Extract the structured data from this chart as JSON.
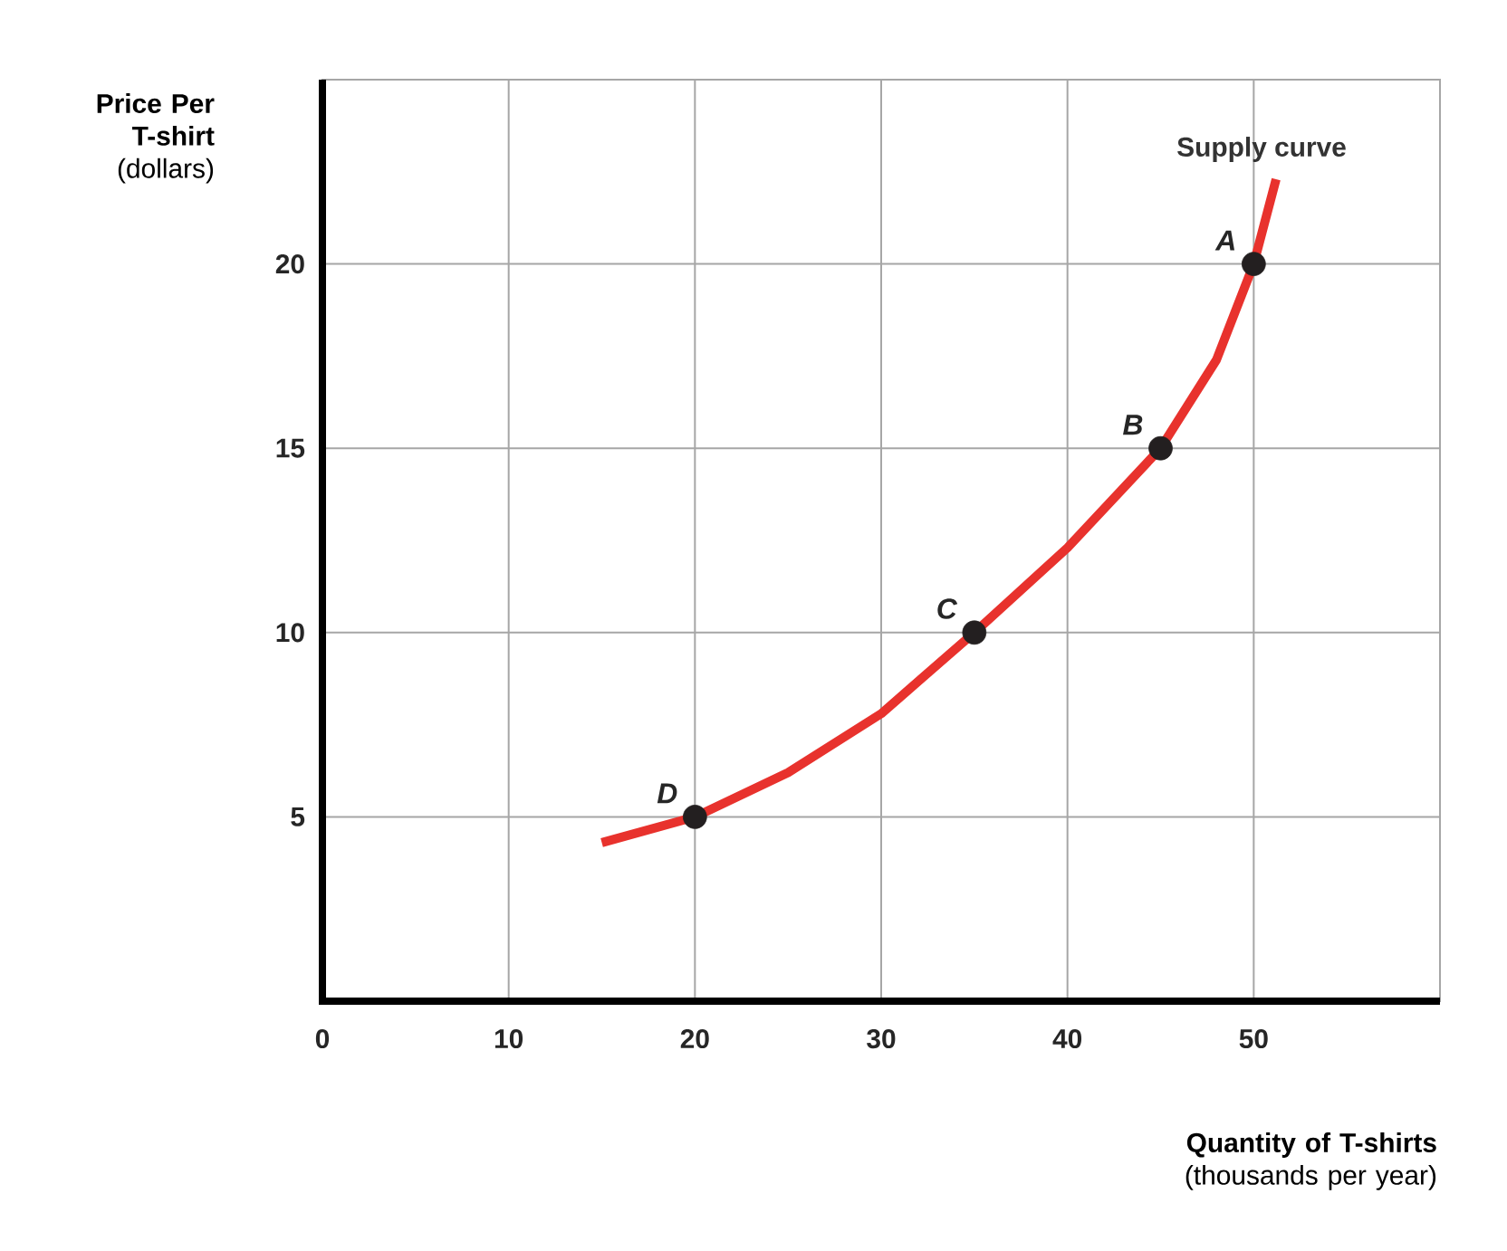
{
  "chart_data": {
    "type": "line",
    "xlabel": "**Quantity of T-shirts** (thousands per year)",
    "ylabel": "**Price Per T-shirt** (dollars)",
    "xlim": [
      0,
      60
    ],
    "ylim": [
      0,
      25
    ],
    "xticks": [
      0,
      10,
      20,
      30,
      40,
      50
    ],
    "yticks": [
      5,
      10,
      15,
      20
    ],
    "grid": true,
    "series": [
      {
        "color": "#e8322d",
        "marker": "none",
        "x": [
          15,
          20,
          25,
          30,
          35,
          40,
          45,
          48,
          50,
          51.2
        ],
        "values": [
          4.3,
          5,
          6.2,
          7.8,
          10,
          12.3,
          15,
          17.4,
          20,
          22.3
        ]
      },
      {
        "type": "scatter",
        "color": "#231f20",
        "marker": "circle",
        "x": [
          20,
          35,
          45,
          50
        ],
        "values": [
          5,
          10,
          15,
          20
        ]
      }
    ],
    "annotations": [
      {
        "text": "Supply curve",
        "x": 51.2,
        "y": 22.3
      },
      {
        "text": "A",
        "x": 50,
        "y": 20
      },
      {
        "text": "B",
        "x": 45,
        "y": 15
      },
      {
        "text": "C",
        "x": 35,
        "y": 10
      },
      {
        "text": "D",
        "x": 20,
        "y": 5
      }
    ]
  }
}
